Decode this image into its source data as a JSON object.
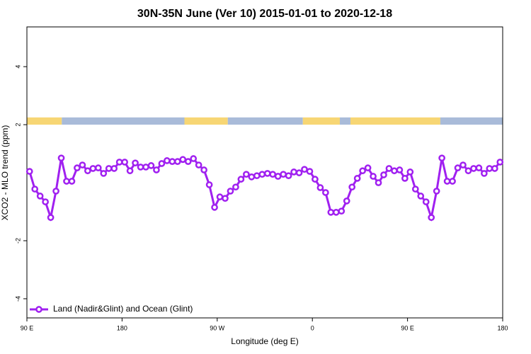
{
  "chart_data": {
    "type": "line",
    "title": "30N-35N June (Ver 10)   2015-01-01 to 2020-12-18",
    "x_label": "Longitude (deg E)",
    "y_label": "XCO2 - MLO trend (ppm)",
    "xlim": [
      90,
      540
    ],
    "ylim": [
      -4.66,
      5.37
    ],
    "xticks": [
      {
        "value": 90,
        "label": "90 E"
      },
      180,
      {
        "value": 270,
        "label": "90 W"
      },
      {
        "value": 360,
        "label": "0"
      },
      {
        "value": 450,
        "label": "90 E"
      },
      {
        "value": 540,
        "label": "180"
      }
    ],
    "yticks": [
      -4,
      -2,
      2,
      4
    ],
    "grid": false,
    "legend": "bottom-left",
    "band": {
      "ylim": [
        2,
        2.25
      ],
      "segments": [
        {
          "start": 90,
          "end": 123,
          "color": "#f7d674"
        },
        {
          "start": 123,
          "end": 239,
          "color": "#a9bbd9"
        },
        {
          "start": 239,
          "end": 280,
          "color": "#f7d674"
        },
        {
          "start": 280,
          "end": 351,
          "color": "#a9bbd9"
        },
        {
          "start": 351,
          "end": 386,
          "color": "#f7d674"
        },
        {
          "start": 386,
          "end": 396,
          "color": "#a9bbd9"
        },
        {
          "start": 396,
          "end": 481,
          "color": "#f7d674"
        },
        {
          "start": 481,
          "end": 540,
          "color": "#a9bbd9"
        }
      ]
    },
    "x": [
      92.5,
      97.5,
      102.5,
      107.5,
      112.5,
      117.5,
      122.5,
      127.5,
      132.5,
      137.5,
      142.5,
      147.5,
      152.5,
      157.5,
      162.5,
      167.5,
      172.5,
      177.5,
      182.5,
      187.5,
      192.5,
      197.5,
      202.5,
      207.5,
      212.5,
      217.5,
      222.5,
      227.5,
      232.5,
      237.5,
      242.5,
      247.5,
      252.5,
      257.5,
      262.5,
      267.5,
      272.5,
      277.5,
      282.5,
      287.5,
      292.5,
      297.5,
      302.5,
      307.5,
      312.5,
      317.5,
      322.5,
      327.5,
      332.5,
      337.5,
      342.5,
      347.5,
      352.5,
      357.5,
      362.5,
      367.5,
      372.5,
      377.5,
      382.5,
      387.5,
      392.5,
      397.5,
      402.5,
      407.5,
      412.5,
      417.5,
      422.5,
      427.5,
      432.5,
      437.5,
      442.5,
      447.5,
      452.5,
      457.5,
      462.5,
      467.5,
      472.5,
      477.5,
      482.5,
      487.5,
      492.5,
      497.5,
      502.5,
      507.5,
      512.5,
      517.5,
      522.5,
      527.5,
      532.5,
      537.5
    ],
    "series": [
      {
        "name": "Land (Nadir&Glint) and Ocean (Glint)",
        "color": "#a020f0",
        "values": [
          0.39,
          -0.22,
          -0.46,
          -0.66,
          -1.2,
          -0.29,
          0.85,
          0.05,
          0.05,
          0.51,
          0.61,
          0.41,
          0.49,
          0.51,
          0.32,
          0.49,
          0.49,
          0.71,
          0.71,
          0.41,
          0.68,
          0.54,
          0.54,
          0.59,
          0.44,
          0.66,
          0.76,
          0.73,
          0.73,
          0.8,
          0.73,
          0.83,
          0.61,
          0.44,
          -0.07,
          -0.85,
          -0.49,
          -0.54,
          -0.29,
          -0.15,
          0.12,
          0.29,
          0.2,
          0.24,
          0.29,
          0.32,
          0.29,
          0.22,
          0.29,
          0.24,
          0.37,
          0.34,
          0.46,
          0.39,
          0.12,
          -0.17,
          -0.34,
          -1.02,
          -1.02,
          -0.98,
          -0.63,
          -0.15,
          0.15,
          0.41,
          0.51,
          0.22,
          0.0,
          0.27,
          0.49,
          0.41,
          0.44,
          0.15,
          0.37,
          -0.22,
          -0.46,
          -0.66,
          -1.2,
          -0.29,
          0.85,
          0.05,
          0.05,
          0.51,
          0.61,
          0.41,
          0.49,
          0.51,
          0.32,
          0.49,
          0.49,
          0.71
        ]
      }
    ]
  }
}
